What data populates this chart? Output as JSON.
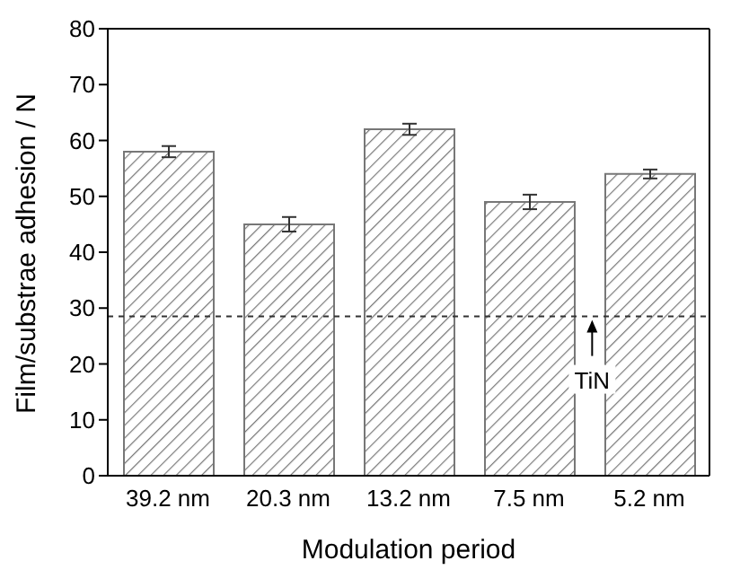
{
  "chart_data": {
    "type": "bar",
    "xlabel": "Modulation period",
    "ylabel": "Film/substrae adhesion / N",
    "categories": [
      "39.2 nm",
      "20.3 nm",
      "13.2 nm",
      "7.5 nm",
      "5.2 nm"
    ],
    "values": [
      58,
      45,
      62,
      49,
      54
    ],
    "errors": [
      1,
      1.3,
      1,
      1.3,
      0.8
    ],
    "color": "#777777",
    "ylim": [
      0,
      80
    ],
    "yticks": [
      0,
      10,
      20,
      30,
      40,
      50,
      60,
      70,
      80
    ],
    "ref_lines": [
      {
        "axis": "y",
        "value": 28.5,
        "label": "TiN",
        "line_style": "dashed",
        "color": "#333333"
      }
    ],
    "grid": false,
    "legend": false
  }
}
